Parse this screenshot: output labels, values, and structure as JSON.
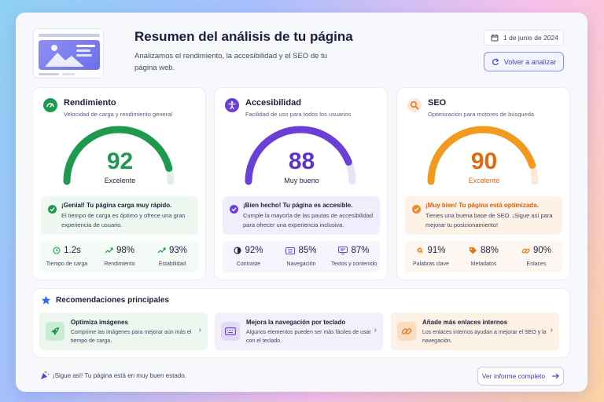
{
  "header": {
    "title": "Resumen del análisis de tu página",
    "subtitle": "Analizamos el rendimiento, la accesibilidad y el SEO de tu página web.",
    "date": "1 de junio de 2024",
    "reanalyze_label": "Volver a analizar"
  },
  "cards": [
    {
      "title": "Rendimiento",
      "description": "Velocidad de carga y rendimiento general",
      "score": "92",
      "score_value": 92,
      "score_label": "Excelente",
      "accent": "#1e9a4f",
      "message_title": "¡Genial! Tu página carga muy rápido.",
      "message_body": "El tiempo de carga es óptimo y ofrece una gran experiencia de usuario.",
      "stats": [
        {
          "value": "1.2s",
          "label": "Tiempo de carga",
          "icon": "clock-icon"
        },
        {
          "value": "98%",
          "label": "Rendimiento",
          "icon": "trend-up-icon"
        },
        {
          "value": "93%",
          "label": "Estabilidad",
          "icon": "trend-up-icon"
        }
      ]
    },
    {
      "title": "Accesibilidad",
      "description": "Facilidad de uso para todos los usuarios",
      "score": "88",
      "score_value": 88,
      "score_label": "Muy bueno",
      "accent": "#6a3fd8",
      "message_title": "¡Bien hecho! Tu página es accesible.",
      "message_body": "Cumple la mayoría de las pautas de accesibilidad para ofrecer una experiencia inclusiva.",
      "stats": [
        {
          "value": "92%",
          "label": "Contraste",
          "icon": "contrast-icon"
        },
        {
          "value": "85%",
          "label": "Navegación",
          "icon": "keyboard-icon"
        },
        {
          "value": "87%",
          "label": "Textos y contenido",
          "icon": "monitor-icon"
        }
      ]
    },
    {
      "title": "SEO",
      "description": "Optimización para motores de búsqueda",
      "score": "90",
      "score_value": 90,
      "score_label": "Excelente",
      "accent": "#e87516",
      "message_title": "¡Muy bien! Tu página está optimizada.",
      "message_body": "Tienes una buena base de SEO. ¡Sigue así para mejorar tu posicionamiento!",
      "stats": [
        {
          "value": "91%",
          "label": "Palabras clave",
          "icon": "search-icon"
        },
        {
          "value": "88%",
          "label": "Metadatos",
          "icon": "tag-icon"
        },
        {
          "value": "90%",
          "label": "Enlaces",
          "icon": "link-icon"
        }
      ]
    }
  ],
  "recommendations": {
    "title": "Recomendaciones principales",
    "items": [
      {
        "title": "Optimiza imágenes",
        "body": "Comprime las imágenes para mejorar aún más el tiempo de carga.",
        "icon": "rocket-icon"
      },
      {
        "title": "Mejora la navegación por teclado",
        "body": "Algunos elementos pueden ser más fáciles de usar con el teclado.",
        "icon": "keyboard-icon"
      },
      {
        "title": "Añade más enlaces internos",
        "body": "Los enlaces internos ayudan a mejorar el SEO y la navegación.",
        "icon": "link-icon"
      }
    ]
  },
  "footer": {
    "message": "¡Sigue así! Tu página está en muy buen estado.",
    "report_label": "Ver informe completo"
  },
  "colors": {
    "green": "#1e9a4f",
    "purple": "#6a3fd8",
    "orange": "#e87516",
    "accent_blue": "#4346c8"
  }
}
